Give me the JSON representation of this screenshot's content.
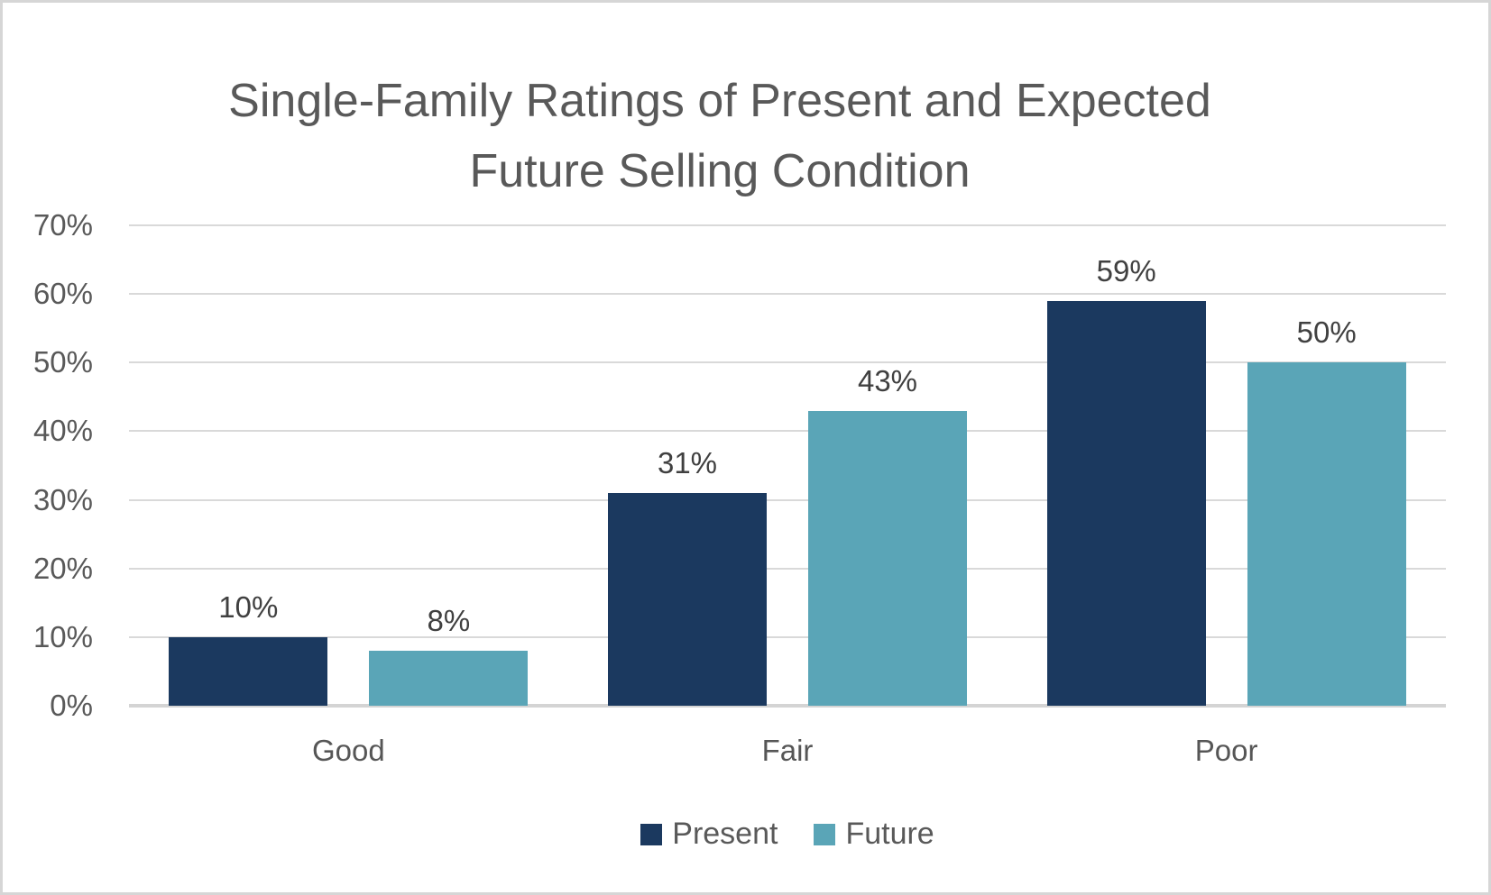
{
  "frame": {
    "background_color": "#ffffff",
    "border_color": "#d6d6d6"
  },
  "chart_data": {
    "type": "bar",
    "title": "Single-Family Ratings of Present and Expected Future Selling Condition",
    "title_lines": [
      "Single-Family Ratings of Present and Expected",
      "Future Selling Condition"
    ],
    "categories": [
      "Good",
      "Fair",
      "Poor"
    ],
    "series": [
      {
        "name": "Present",
        "color": "#1B395F",
        "values": [
          10,
          31,
          59
        ],
        "labels": [
          "10%",
          "31%",
          "59%"
        ]
      },
      {
        "name": "Future",
        "color": "#5AA5B7",
        "values": [
          8,
          43,
          50
        ],
        "labels": [
          "8%",
          "43%",
          "50%"
        ]
      }
    ],
    "value_suffix": "%",
    "y_axis": {
      "min": 0,
      "max": 70,
      "step": 10,
      "tick_labels": [
        "0%",
        "10%",
        "20%",
        "30%",
        "40%",
        "50%",
        "60%",
        "70%"
      ]
    },
    "xlabel": "",
    "ylabel": "",
    "grid": true,
    "legend_position": "bottom",
    "colors": {
      "gridline": "#d9d9d9",
      "axis_line": "#d4d4d4",
      "title_text": "#595959",
      "tick_text": "#595959",
      "category_text": "#565656",
      "data_label_text": "#404040"
    }
  }
}
